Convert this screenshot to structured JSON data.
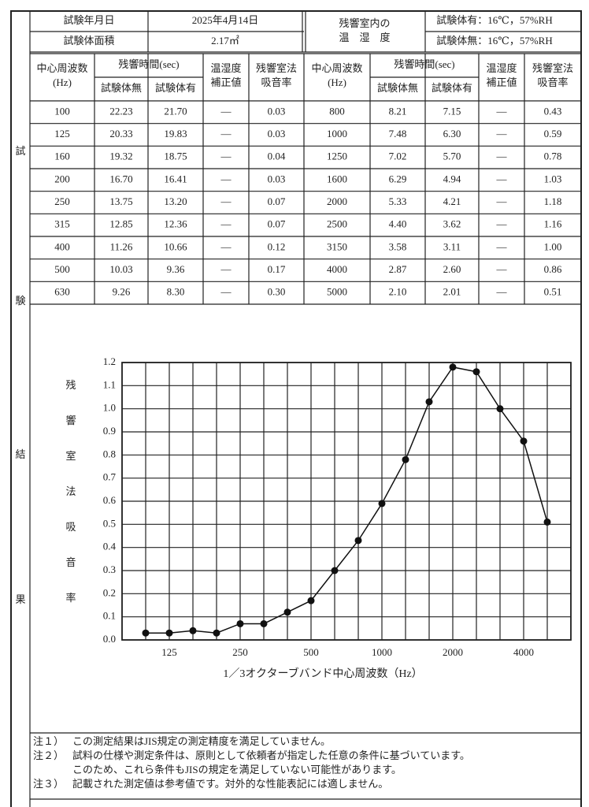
{
  "header": {
    "date_label": "試験年月日",
    "date": "2025年4月14日",
    "area_label": "試験体面積",
    "area": "2.17㎡",
    "room_label": [
      "残響室内の",
      "温　湿　度"
    ],
    "cond_with": "試験体有：16℃，57%RH",
    "cond_without": "試験体無：16℃，57%RH"
  },
  "side_label": [
    "試",
    "験",
    "結",
    "果"
  ],
  "table": {
    "columns": {
      "freq": [
        "中心周波数",
        "(Hz)"
      ],
      "rt": "残響時間(sec)",
      "without": "試験体無",
      "with": "試験体有",
      "corr": [
        "温湿度",
        "補正値"
      ],
      "alpha": [
        "残響室法",
        "吸音率"
      ]
    },
    "rows": [
      [
        "100",
        "22.23",
        "21.70",
        "—",
        "0.03",
        "800",
        "8.21",
        "7.15",
        "—",
        "0.43"
      ],
      [
        "125",
        "20.33",
        "19.83",
        "—",
        "0.03",
        "1000",
        "7.48",
        "6.30",
        "—",
        "0.59"
      ],
      [
        "160",
        "19.32",
        "18.75",
        "—",
        "0.04",
        "1250",
        "7.02",
        "5.70",
        "—",
        "0.78"
      ],
      [
        "200",
        "16.70",
        "16.41",
        "—",
        "0.03",
        "1600",
        "6.29",
        "4.94",
        "—",
        "1.03"
      ],
      [
        "250",
        "13.75",
        "13.20",
        "—",
        "0.07",
        "2000",
        "5.33",
        "4.21",
        "—",
        "1.18"
      ],
      [
        "315",
        "12.85",
        "12.36",
        "—",
        "0.07",
        "2500",
        "4.40",
        "3.62",
        "—",
        "1.16"
      ],
      [
        "400",
        "11.26",
        "10.66",
        "—",
        "0.12",
        "3150",
        "3.58",
        "3.11",
        "—",
        "1.00"
      ],
      [
        "500",
        "10.03",
        "9.36",
        "—",
        "0.17",
        "4000",
        "2.87",
        "2.60",
        "—",
        "0.86"
      ],
      [
        "630",
        "9.26",
        "8.30",
        "—",
        "0.30",
        "5000",
        "2.10",
        "2.01",
        "—",
        "0.51"
      ]
    ]
  },
  "chart_data": {
    "type": "line",
    "color": "#111111",
    "grid": true,
    "y_label": [
      "残",
      "響",
      "室",
      "法",
      "吸",
      "音",
      "率"
    ],
    "x_label": "1／3オクターブバンド中心周波数（Hz）",
    "categories": [
      null,
      "125",
      null,
      null,
      "250",
      null,
      null,
      "500",
      null,
      null,
      "1000",
      null,
      null,
      "2000",
      null,
      null,
      "4000",
      null
    ],
    "values": [
      0.03,
      0.03,
      0.04,
      0.03,
      0.07,
      0.07,
      0.12,
      0.17,
      0.3,
      0.43,
      0.59,
      0.78,
      1.03,
      1.18,
      1.16,
      1.0,
      0.86,
      0.51
    ],
    "ylim": [
      0,
      1.2
    ],
    "yticks": [
      {
        "value": 0,
        "label": "0.0"
      },
      0.1,
      0.2,
      0.3,
      0.4,
      0.5,
      0.6,
      0.7,
      0.8,
      0.9,
      {
        "value": 1,
        "label": "1.0"
      },
      1.1,
      1.2
    ]
  },
  "notes": [
    {
      "label": "注１）",
      "lines": [
        "この測定結果はJIS規定の測定精度を満足していません。"
      ]
    },
    {
      "label": "注２）",
      "lines": [
        "試料の仕様や測定条件は、原則として依頼者が指定した任意の条件に基づいています。",
        "このため、これら条件もJISの規定を満足していない可能性があります。"
      ]
    },
    {
      "label": "注３）",
      "lines": [
        "記載された測定値は参考値です。対外的な性能表記には適しません。"
      ]
    }
  ]
}
